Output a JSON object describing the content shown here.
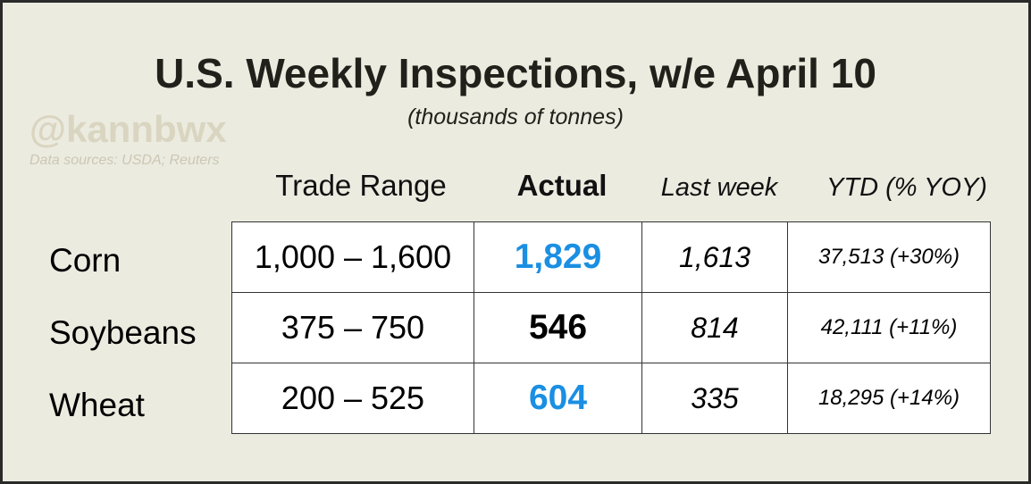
{
  "header": {
    "title": "U.S. Weekly Inspections, w/e April 10",
    "subtitle": "(thousands of tonnes)",
    "watermark": "@kannbwx",
    "sources": "Data sources: USDA; Reuters"
  },
  "table": {
    "columns": [
      "Trade Range",
      "Actual",
      "Last week",
      "YTD (% YOY)"
    ],
    "rows": [
      {
        "label": "Corn",
        "cells": [
          "1,000 – 1,600",
          "1,829",
          "1,613",
          "37,513 (+30%)"
        ],
        "actual_color": "#1a8fe3"
      },
      {
        "label": "Soybeans",
        "cells": [
          "375 – 750",
          "546",
          "814",
          "42,111 (+11%)"
        ],
        "actual_color": "#000000"
      },
      {
        "label": "Wheat",
        "cells": [
          "200 – 525",
          "604",
          "335",
          "18,295 (+14%)"
        ],
        "actual_color": "#1a8fe3"
      }
    ]
  }
}
